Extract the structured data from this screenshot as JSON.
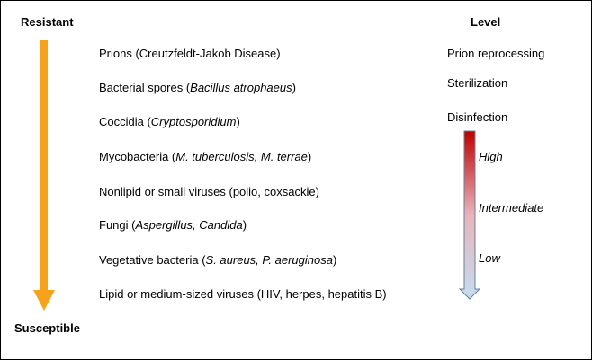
{
  "header": {
    "resistant": "Resistant",
    "level": "Level",
    "susceptible": "Susceptible"
  },
  "organisms": [
    {
      "plain": "Prions (Creutzfeldt-Jakob Disease)",
      "italic": "",
      "suffix": ""
    },
    {
      "plain": "Bacterial spores (",
      "italic": "Bacillus atrophaeus",
      "suffix": ")"
    },
    {
      "plain": "Coccidia (",
      "italic": "Cryptosporidium",
      "suffix": ")"
    },
    {
      "plain": "Mycobacteria (",
      "italic": "M. tuberculosis, M. terrae",
      "suffix": ")"
    },
    {
      "plain": "Nonlipid or small viruses (polio, coxsackie)",
      "italic": "",
      "suffix": ""
    },
    {
      "plain": "Fungi (",
      "italic": "Aspergillus, Candida",
      "suffix": ")"
    },
    {
      "plain": "Vegetative bacteria (",
      "italic": "S. aureus, P. aeruginosa",
      "suffix": ")"
    },
    {
      "plain": "Lipid or medium-sized viruses (HIV, herpes, hepatitis B)",
      "italic": "",
      "suffix": ""
    }
  ],
  "levels": {
    "prion": "Prion reprocessing",
    "sterilization": "Sterilization",
    "disinfection": "Disinfection"
  },
  "disinfection_levels": {
    "high": "High",
    "intermediate": "Intermediate",
    "low": "Low"
  },
  "colors": {
    "resistance_arrow": "#F7A21B",
    "gradient_top": "#C00000",
    "gradient_bottom": "#C5DCF0",
    "arrow_outline": "#6A7F96"
  }
}
